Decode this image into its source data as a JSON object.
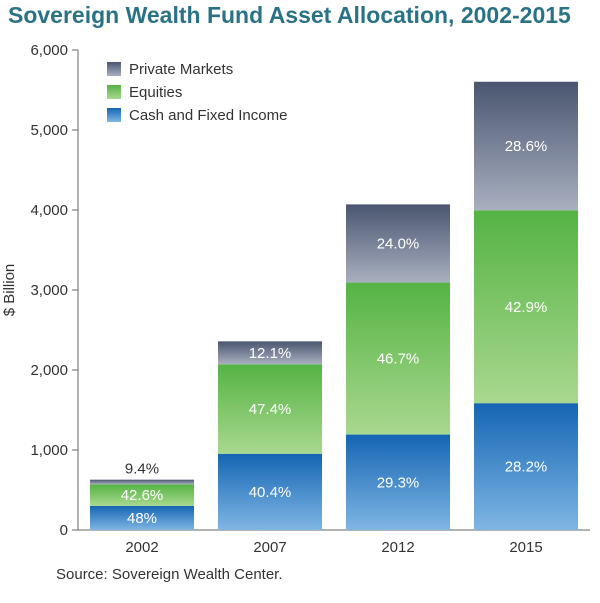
{
  "title": "Sovereign Wealth Fund Asset Allocation, 2002-2015",
  "source": "Source: Sovereign Wealth Center.",
  "colors": {
    "private_markets": "#4d5872",
    "equities": "#5cb84a",
    "cash": "#1a6db8",
    "title": "#2a7285"
  },
  "chart_data": {
    "type": "bar",
    "stacked": true,
    "title": "Sovereign Wealth Fund Asset Allocation, 2002-2015",
    "xlabel": "",
    "ylabel": "$ Billion",
    "ylim": [
      0,
      6000
    ],
    "yticks": [
      "0",
      "1,000",
      "2,000",
      "3,000",
      "4,000",
      "5,000",
      "6,000"
    ],
    "categories": [
      "2002",
      "2007",
      "2012",
      "2015"
    ],
    "totals": [
      630,
      2360,
      4070,
      5620
    ],
    "grid": false,
    "legend_position": "top-left",
    "series": [
      {
        "name": "Cash and Fixed Income",
        "values": [
          302,
          953,
          1193,
          1585
        ],
        "labels": [
          "48%",
          "40.4%",
          "29.3%",
          "28.2%"
        ]
      },
      {
        "name": "Equities",
        "values": [
          268,
          1119,
          1900,
          2411
        ],
        "labels": [
          "42.6%",
          "47.4%",
          "46.7%",
          "42.9%"
        ]
      },
      {
        "name": "Private Markets",
        "values": [
          59,
          286,
          977,
          1607
        ],
        "labels": [
          "9.4%",
          "12.1%",
          "24.0%",
          "28.6%"
        ]
      }
    ],
    "legend_order": [
      "Private Markets",
      "Equities",
      "Cash and Fixed Income"
    ]
  }
}
